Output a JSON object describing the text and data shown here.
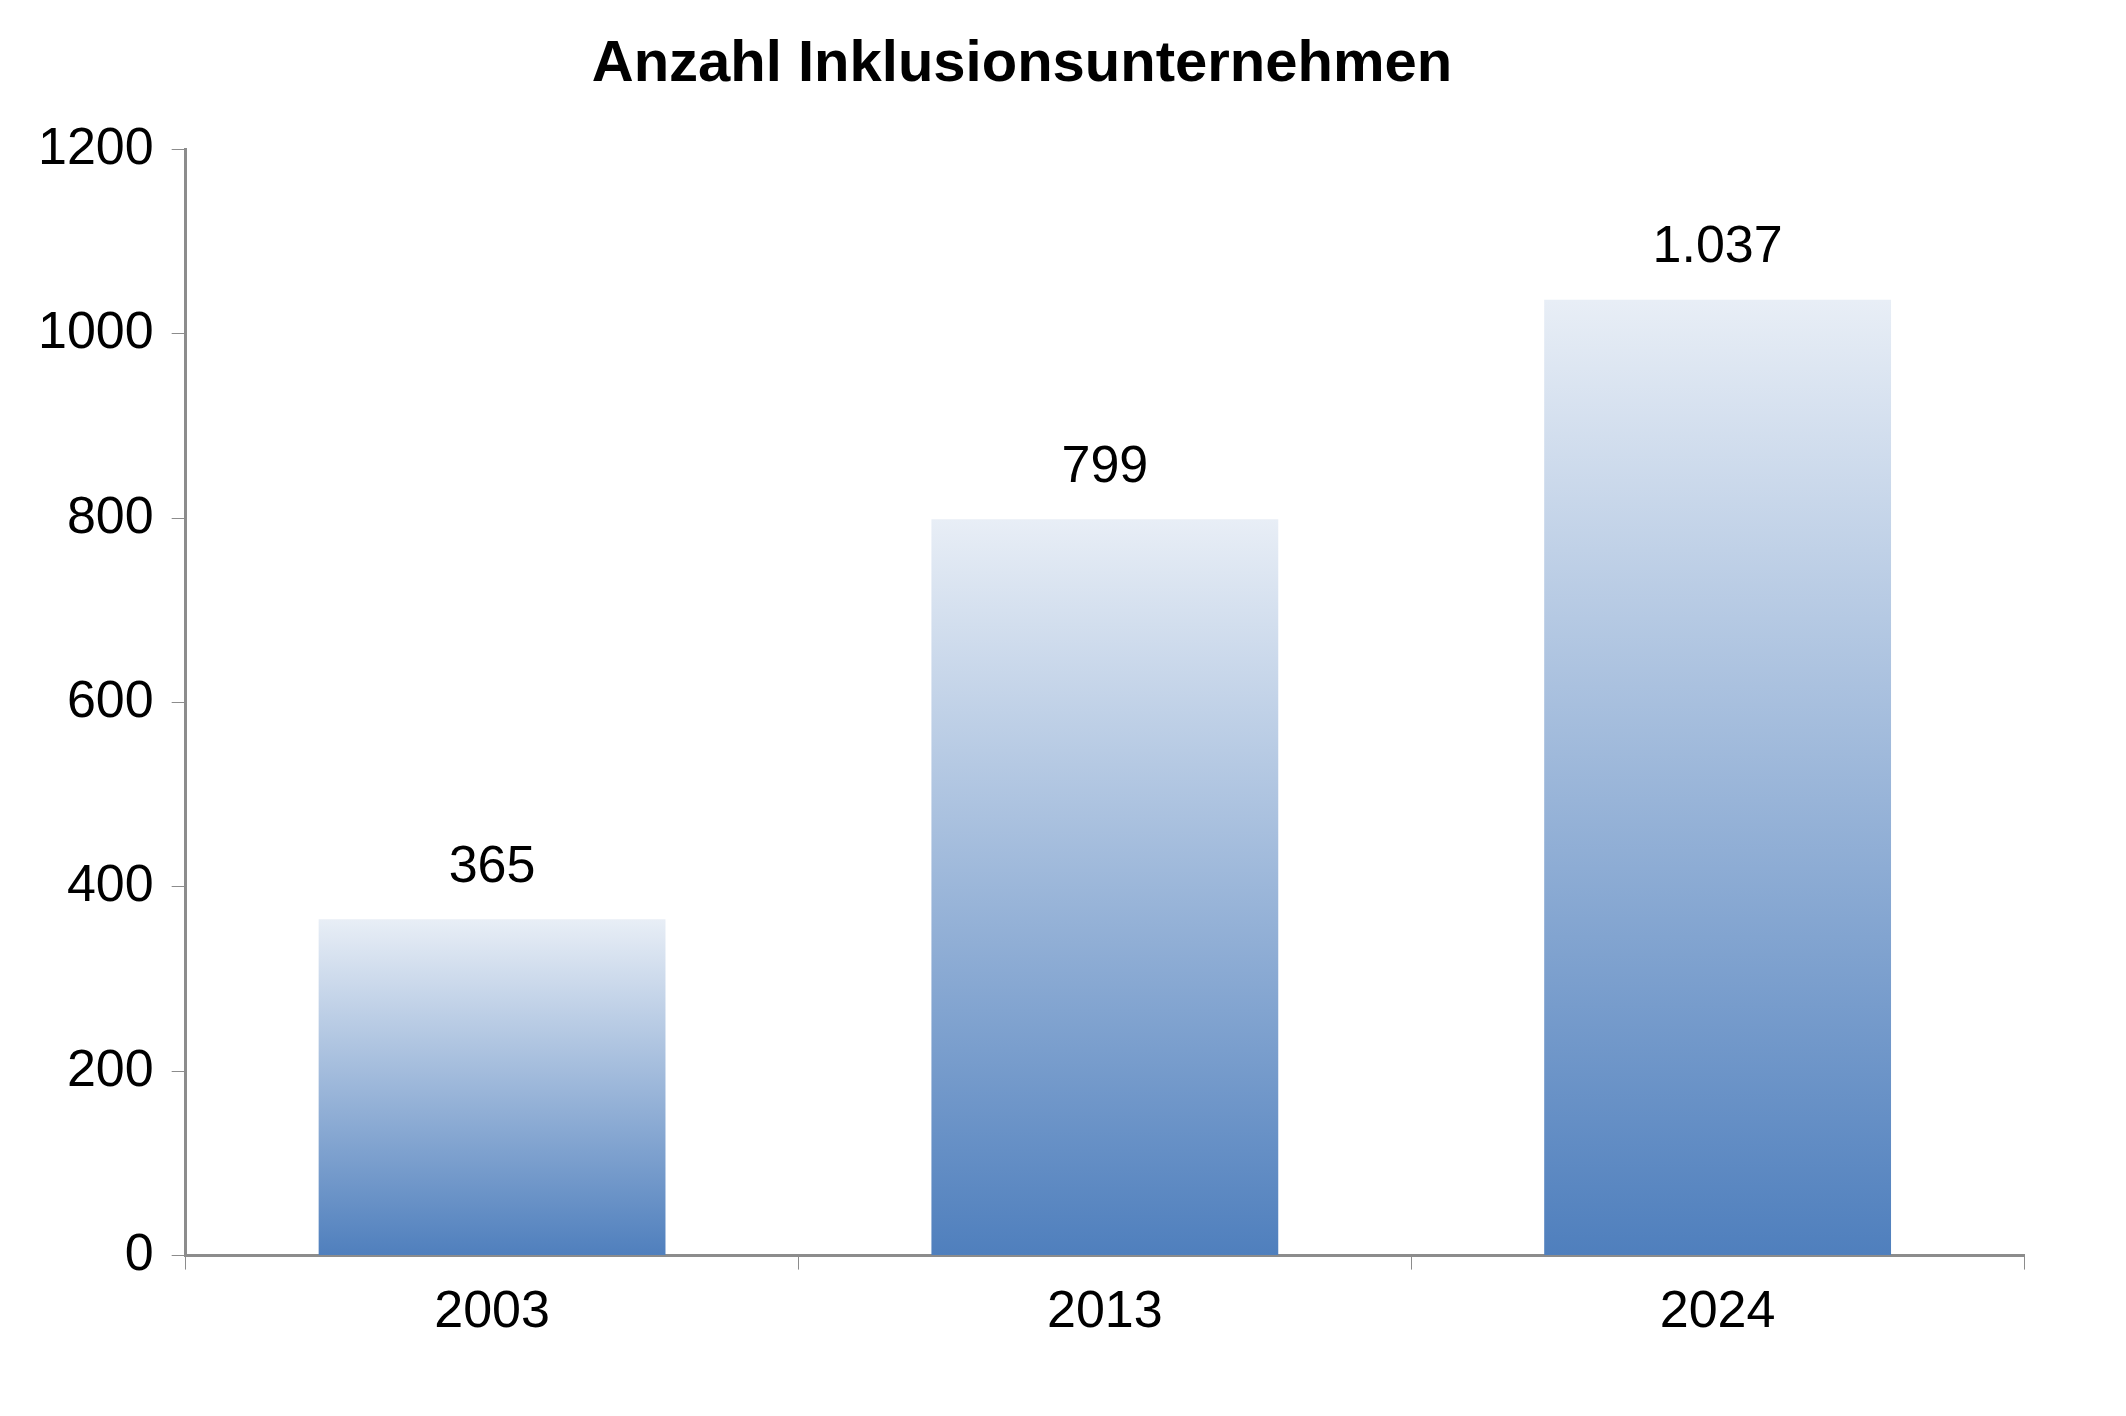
{
  "chart_data": {
    "type": "bar",
    "title": "Anzahl Inklusionsunternehmen",
    "categories": [
      "2003",
      "2013",
      "2024"
    ],
    "values": [
      365,
      799,
      1037
    ],
    "value_labels": [
      "365",
      "799",
      "1.037"
    ],
    "color": "#4f7fbd",
    "ylim": [
      0,
      1200
    ],
    "yticks": [
      0,
      200,
      400,
      600,
      800,
      1000,
      1200
    ],
    "grid": false,
    "legend": false
  }
}
